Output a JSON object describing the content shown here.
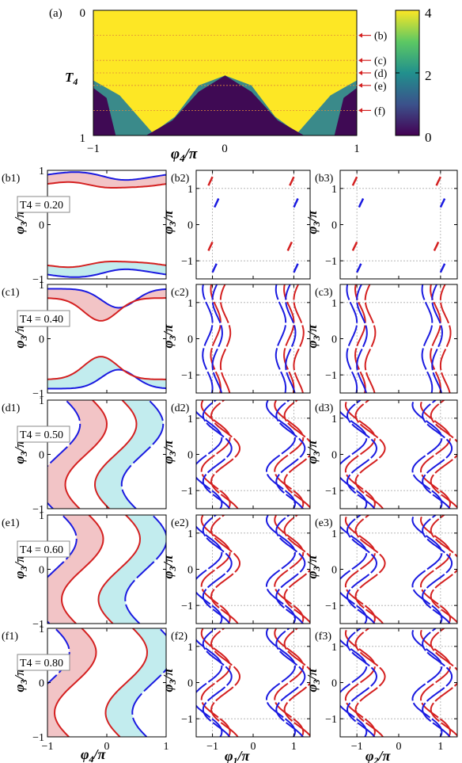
{
  "chart_data": [
    {
      "id": "a",
      "panel_label": "(a)",
      "type": "heatmap",
      "xlabel": "φ4/π",
      "ylabel": "T4",
      "xlim": [
        -1,
        1
      ],
      "ylim": [
        0,
        1
      ],
      "x_ticks": [
        "−1",
        "0",
        "1"
      ],
      "y_ticks": [
        "0",
        "1"
      ],
      "colorbar": {
        "range": [
          0,
          4
        ],
        "ticks": [
          "0",
          "2",
          "4"
        ],
        "colors": [
          "#440154",
          "#3b528b",
          "#21908d",
          "#5dc863",
          "#fde725"
        ]
      },
      "regions_note_values": {
        "top_value": 4,
        "middle_value": 2,
        "bottom_value": 0
      },
      "boundary_outer": [
        [
          -1,
          0.56
        ],
        [
          -0.8,
          0.68
        ],
        [
          -0.55,
          0.98
        ],
        [
          -0.38,
          0.85
        ],
        [
          -0.2,
          0.6
        ],
        [
          0,
          0.52
        ],
        [
          0.2,
          0.6
        ],
        [
          0.38,
          0.85
        ],
        [
          0.55,
          0.98
        ],
        [
          0.8,
          0.68
        ],
        [
          1,
          0.56
        ]
      ],
      "boundary_inner": [
        [
          -1,
          0.62
        ],
        [
          -0.9,
          0.7
        ],
        [
          -0.83,
          1.0
        ],
        [
          -0.6,
          1.0
        ],
        [
          -0.4,
          0.88
        ],
        [
          -0.2,
          0.65
        ],
        [
          0,
          0.52
        ],
        [
          0.2,
          0.65
        ],
        [
          0.4,
          0.88
        ],
        [
          0.6,
          1.0
        ],
        [
          0.83,
          1.0
        ],
        [
          0.9,
          0.7
        ],
        [
          1,
          0.62
        ]
      ],
      "cut_lines": [
        {
          "T4": 0.2,
          "label": "(b)"
        },
        {
          "T4": 0.4,
          "label": "(c)"
        },
        {
          "T4": 0.5,
          "label": "(d)"
        },
        {
          "T4": 0.6,
          "label": "(e)"
        },
        {
          "T4": 0.8,
          "label": "(f)"
        }
      ],
      "side_label": "T4"
    }
  ],
  "rows": [
    {
      "key": "b",
      "t4_label": "T4 = 0.20",
      "labels": [
        "(b1)",
        "(b2)",
        "(b3)"
      ]
    },
    {
      "key": "c",
      "t4_label": "T4 = 0.40",
      "labels": [
        "(c1)",
        "(c2)",
        "(c3)"
      ]
    },
    {
      "key": "d",
      "t4_label": "T4 = 0.50",
      "labels": [
        "(d1)",
        "(d2)",
        "(d3)"
      ]
    },
    {
      "key": "e",
      "t4_label": "T4 = 0.60",
      "labels": [
        "(e1)",
        "(e2)",
        "(e3)"
      ]
    },
    {
      "key": "f",
      "t4_label": "T4 = 0.80",
      "labels": [
        "(f1)",
        "(f2)",
        "(f3)"
      ]
    }
  ],
  "axes": {
    "col1": {
      "xlabel": "φ4/π",
      "ylabel": "φ3/π",
      "xlim": [
        -1,
        1
      ],
      "ylim": [
        -1,
        1
      ],
      "x_ticks": [
        "−1",
        "0",
        "1"
      ],
      "y_ticks": [
        "−1",
        "0",
        "1"
      ]
    },
    "col2": {
      "xlabel": "φ1/π",
      "ylabel": "φ3/π",
      "xlim": [
        -1.4,
        1.4
      ],
      "ylim": [
        -1.5,
        1.5
      ],
      "x_ticks": [
        "−1",
        "0",
        "1"
      ],
      "y_ticks": [
        "−1",
        "0",
        "1"
      ]
    },
    "col3": {
      "xlabel": "φ2/π",
      "ylabel": "φ3/π",
      "xlim": [
        -1.4,
        1.4
      ],
      "ylim": [
        -1.5,
        1.5
      ],
      "x_ticks": [
        "−1",
        "0",
        "1"
      ],
      "y_ticks": [
        "−1",
        "0",
        "1"
      ]
    }
  },
  "colors": {
    "red": "#d42020",
    "blue": "#1a1ae0",
    "pink_fill": "#f2c4c6",
    "cyan_fill": "#c2ecee",
    "grid": "#aaaaaa"
  }
}
